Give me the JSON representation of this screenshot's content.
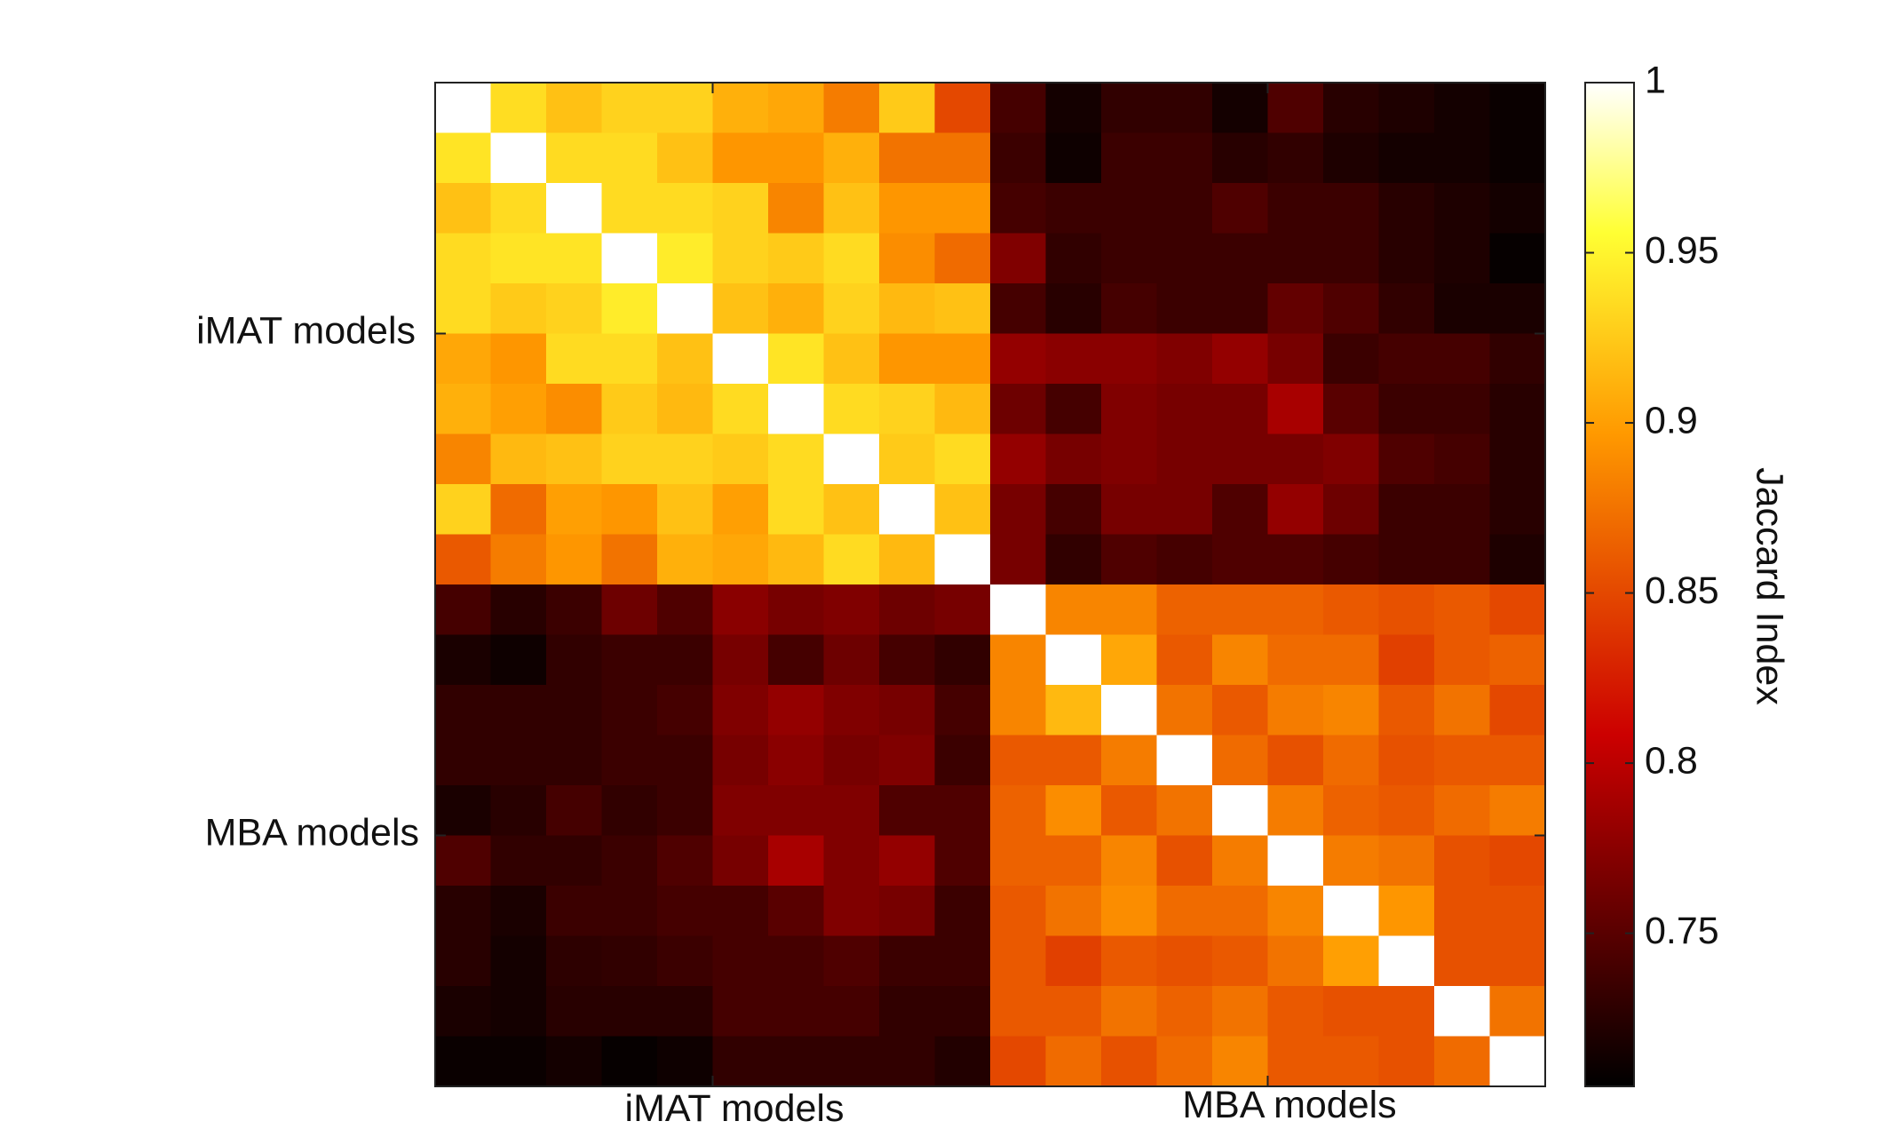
{
  "chart_data": {
    "type": "heatmap",
    "title": "",
    "x_tick_labels": [
      "iMAT models",
      "MBA models"
    ],
    "y_tick_labels": [
      "iMAT models",
      "MBA models"
    ],
    "colorbar_label": "Jaccard Index",
    "colorbar_ticks": [
      "1",
      "0.95",
      "0.9",
      "0.85",
      "0.8",
      "0.75"
    ],
    "colorbar_tick_values": [
      1,
      0.95,
      0.9,
      0.85,
      0.8,
      0.75
    ],
    "color_range": [
      0.705,
      1
    ],
    "colormap": "hot",
    "n_rows": 20,
    "n_cols": 20,
    "values": [
      [
        1.0,
        0.936,
        0.92,
        0.93,
        0.93,
        0.91,
        0.905,
        0.88,
        0.925,
        0.85,
        0.74,
        0.715,
        0.73,
        0.73,
        0.715,
        0.745,
        0.725,
        0.72,
        0.715,
        0.71
      ],
      [
        0.94,
        1.0,
        0.935,
        0.935,
        0.92,
        0.895,
        0.895,
        0.91,
        0.875,
        0.875,
        0.735,
        0.712,
        0.735,
        0.735,
        0.725,
        0.73,
        0.72,
        0.715,
        0.715,
        0.71
      ],
      [
        0.92,
        0.935,
        1.0,
        0.935,
        0.935,
        0.93,
        0.885,
        0.92,
        0.895,
        0.895,
        0.74,
        0.735,
        0.735,
        0.735,
        0.745,
        0.735,
        0.735,
        0.725,
        0.72,
        0.715
      ],
      [
        0.935,
        0.94,
        0.94,
        1.0,
        0.945,
        0.93,
        0.925,
        0.935,
        0.89,
        0.87,
        0.77,
        0.73,
        0.735,
        0.735,
        0.735,
        0.735,
        0.735,
        0.725,
        0.72,
        0.708
      ],
      [
        0.935,
        0.925,
        0.93,
        0.945,
        1.0,
        0.92,
        0.91,
        0.93,
        0.915,
        0.92,
        0.74,
        0.725,
        0.74,
        0.735,
        0.735,
        0.755,
        0.745,
        0.73,
        0.718,
        0.718
      ],
      [
        0.905,
        0.895,
        0.935,
        0.935,
        0.92,
        1.0,
        0.94,
        0.92,
        0.895,
        0.895,
        0.78,
        0.775,
        0.775,
        0.77,
        0.78,
        0.765,
        0.735,
        0.74,
        0.74,
        0.73
      ],
      [
        0.91,
        0.9,
        0.89,
        0.925,
        0.915,
        0.935,
        1.0,
        0.935,
        0.93,
        0.915,
        0.76,
        0.74,
        0.77,
        0.765,
        0.765,
        0.79,
        0.75,
        0.735,
        0.735,
        0.725
      ],
      [
        0.885,
        0.915,
        0.92,
        0.93,
        0.93,
        0.925,
        0.935,
        1.0,
        0.925,
        0.935,
        0.78,
        0.765,
        0.77,
        0.765,
        0.765,
        0.765,
        0.77,
        0.745,
        0.74,
        0.725
      ],
      [
        0.93,
        0.87,
        0.9,
        0.895,
        0.92,
        0.9,
        0.935,
        0.92,
        1.0,
        0.92,
        0.765,
        0.74,
        0.765,
        0.765,
        0.745,
        0.78,
        0.76,
        0.735,
        0.735,
        0.725
      ],
      [
        0.86,
        0.88,
        0.895,
        0.875,
        0.91,
        0.905,
        0.915,
        0.935,
        0.915,
        1.0,
        0.765,
        0.73,
        0.745,
        0.74,
        0.745,
        0.745,
        0.74,
        0.735,
        0.735,
        0.72
      ],
      [
        0.74,
        0.725,
        0.735,
        0.76,
        0.745,
        0.775,
        0.765,
        0.77,
        0.76,
        0.765,
        1.0,
        0.885,
        0.885,
        0.865,
        0.865,
        0.865,
        0.86,
        0.855,
        0.86,
        0.85
      ],
      [
        0.718,
        0.712,
        0.73,
        0.735,
        0.735,
        0.765,
        0.74,
        0.76,
        0.74,
        0.73,
        0.885,
        1.0,
        0.905,
        0.86,
        0.885,
        0.87,
        0.87,
        0.845,
        0.86,
        0.865
      ],
      [
        0.73,
        0.73,
        0.73,
        0.735,
        0.74,
        0.77,
        0.78,
        0.77,
        0.765,
        0.74,
        0.885,
        0.915,
        1.0,
        0.875,
        0.86,
        0.88,
        0.885,
        0.86,
        0.875,
        0.85
      ],
      [
        0.73,
        0.73,
        0.73,
        0.735,
        0.735,
        0.765,
        0.775,
        0.765,
        0.77,
        0.735,
        0.86,
        0.86,
        0.88,
        1.0,
        0.87,
        0.855,
        0.87,
        0.855,
        0.86,
        0.86
      ],
      [
        0.718,
        0.725,
        0.74,
        0.73,
        0.735,
        0.77,
        0.77,
        0.77,
        0.745,
        0.745,
        0.865,
        0.89,
        0.86,
        0.875,
        1.0,
        0.88,
        0.865,
        0.86,
        0.87,
        0.88
      ],
      [
        0.745,
        0.73,
        0.73,
        0.735,
        0.745,
        0.765,
        0.79,
        0.77,
        0.78,
        0.745,
        0.865,
        0.865,
        0.885,
        0.855,
        0.88,
        1.0,
        0.88,
        0.875,
        0.855,
        0.85
      ],
      [
        0.725,
        0.718,
        0.735,
        0.735,
        0.74,
        0.74,
        0.75,
        0.77,
        0.765,
        0.735,
        0.86,
        0.875,
        0.89,
        0.87,
        0.87,
        0.885,
        1.0,
        0.895,
        0.855,
        0.855
      ],
      [
        0.725,
        0.715,
        0.728,
        0.73,
        0.735,
        0.74,
        0.74,
        0.745,
        0.735,
        0.735,
        0.86,
        0.845,
        0.86,
        0.855,
        0.86,
        0.875,
        0.9,
        1.0,
        0.855,
        0.855
      ],
      [
        0.718,
        0.715,
        0.725,
        0.725,
        0.725,
        0.74,
        0.74,
        0.74,
        0.73,
        0.73,
        0.86,
        0.86,
        0.875,
        0.865,
        0.875,
        0.86,
        0.855,
        0.855,
        1.0,
        0.875
      ],
      [
        0.71,
        0.71,
        0.715,
        0.708,
        0.712,
        0.73,
        0.73,
        0.73,
        0.73,
        0.722,
        0.85,
        0.87,
        0.855,
        0.87,
        0.885,
        0.86,
        0.86,
        0.855,
        0.87,
        1.0
      ]
    ]
  }
}
